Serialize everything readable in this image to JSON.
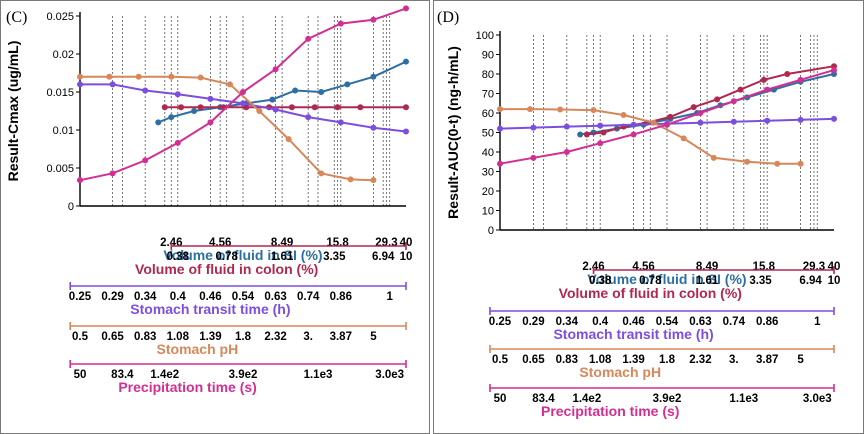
{
  "colors": {
    "si": "#2e6fa3",
    "colon": "#b0284f",
    "transit": "#7c4ee0",
    "ph": "#d8875a",
    "precip": "#d12f93"
  },
  "chart_data": [
    {
      "type": "line",
      "panel_label": "(C)",
      "ylabel": "Result-Cmax (ug/mL)",
      "ylim": [
        0,
        0.025
      ],
      "y_ticks": [
        "0",
        "0.005",
        "0.01",
        "0.015",
        "0.02",
        "0.025"
      ],
      "grid": "dashed vertical lines at x ticks",
      "series": [
        {
          "name": "Volume of fluid in SI (%)",
          "color_key": "si",
          "x": [
            0.24,
            0.28,
            0.35,
            0.43,
            0.51,
            0.59,
            0.66,
            0.74,
            0.82,
            0.9,
            1.0
          ],
          "values": [
            0.011,
            0.0117,
            0.0125,
            0.013,
            0.0135,
            0.014,
            0.0152,
            0.015,
            0.016,
            0.017,
            0.019
          ]
        },
        {
          "name": "Volume of fluid in colon (%)",
          "color_key": "colon",
          "x": [
            0.26,
            0.31,
            0.37,
            0.44,
            0.51,
            0.58,
            0.65,
            0.72,
            0.79,
            0.86,
            1.0
          ],
          "values": [
            0.013,
            0.013,
            0.013,
            0.013,
            0.013,
            0.013,
            0.013,
            0.013,
            0.013,
            0.013,
            0.013
          ]
        },
        {
          "name": "Stomach transit time (h)",
          "color_key": "transit",
          "x": [
            0.0,
            0.1,
            0.2,
            0.3,
            0.4,
            0.5,
            0.6,
            0.7,
            0.8,
            0.9,
            1.0
          ],
          "values": [
            0.016,
            0.016,
            0.0152,
            0.0147,
            0.0141,
            0.0135,
            0.0127,
            0.0117,
            0.011,
            0.0103,
            0.0098
          ]
        },
        {
          "name": "Stomach pH",
          "color_key": "ph",
          "x": [
            0.0,
            0.09,
            0.18,
            0.28,
            0.37,
            0.46,
            0.55,
            0.64,
            0.74,
            0.83,
            0.9
          ],
          "values": [
            0.017,
            0.017,
            0.017,
            0.017,
            0.0169,
            0.016,
            0.0125,
            0.0088,
            0.0043,
            0.0035,
            0.0034
          ]
        },
        {
          "name": "Precipitation time (s)",
          "color_key": "precip",
          "x": [
            0.0,
            0.1,
            0.2,
            0.3,
            0.4,
            0.5,
            0.6,
            0.7,
            0.8,
            0.9,
            1.0
          ],
          "values": [
            0.0034,
            0.0043,
            0.006,
            0.0083,
            0.011,
            0.015,
            0.018,
            0.022,
            0.024,
            0.0245,
            0.026
          ]
        }
      ]
    },
    {
      "type": "line",
      "panel_label": "(D)",
      "ylabel": "Result-AUC(0-t) (ng-h/mL)",
      "ylim": [
        0,
        100
      ],
      "y_ticks": [
        "0",
        "10",
        "20",
        "30",
        "40",
        "50",
        "60",
        "70",
        "80",
        "90",
        "100"
      ],
      "grid": "dashed vertical lines at x ticks",
      "series": [
        {
          "name": "Volume of fluid in SI (%)",
          "color_key": "si",
          "x": [
            0.24,
            0.28,
            0.35,
            0.43,
            0.51,
            0.59,
            0.66,
            0.74,
            0.82,
            0.9,
            1.0
          ],
          "values": [
            49,
            50,
            52,
            54,
            57,
            60,
            64,
            68,
            72,
            76,
            80
          ]
        },
        {
          "name": "Volume of fluid in colon (%)",
          "color_key": "colon",
          "x": [
            0.26,
            0.31,
            0.37,
            0.44,
            0.51,
            0.58,
            0.65,
            0.72,
            0.79,
            0.86,
            1.0
          ],
          "values": [
            49,
            50,
            53,
            55,
            58,
            63,
            67,
            72,
            77,
            80,
            84
          ]
        },
        {
          "name": "Stomach transit time (h)",
          "color_key": "transit",
          "x": [
            0.0,
            0.1,
            0.2,
            0.3,
            0.4,
            0.5,
            0.6,
            0.7,
            0.8,
            0.9,
            1.0
          ],
          "values": [
            52,
            52.5,
            53,
            53.5,
            54,
            54.5,
            55,
            55.5,
            56,
            56.5,
            57
          ]
        },
        {
          "name": "Stomach pH",
          "color_key": "ph",
          "x": [
            0.0,
            0.09,
            0.18,
            0.28,
            0.37,
            0.46,
            0.55,
            0.64,
            0.74,
            0.83,
            0.9
          ],
          "values": [
            62,
            62,
            61.8,
            61.5,
            59,
            55,
            47,
            37,
            35,
            34,
            34
          ]
        },
        {
          "name": "Precipitation time (s)",
          "color_key": "precip",
          "x": [
            0.0,
            0.1,
            0.2,
            0.3,
            0.4,
            0.5,
            0.6,
            0.7,
            0.8,
            0.9,
            1.0
          ],
          "values": [
            34,
            37,
            40,
            44.5,
            49,
            54,
            60,
            66,
            72,
            77,
            82
          ]
        }
      ]
    }
  ],
  "x_axes": [
    {
      "key": "si",
      "title": "Volume of fluid in SI (%)",
      "ticks": [
        {
          "label": "2.46",
          "x": 0.28
        },
        {
          "label": "4.56",
          "x": 0.43
        },
        {
          "label": "8.49",
          "x": 0.62
        },
        {
          "label": "15.8",
          "x": 0.79
        },
        {
          "label": "29.3",
          "x": 0.94
        },
        {
          "label": "40",
          "x": 1.0
        }
      ]
    },
    {
      "key": "colon",
      "title": "Volume of fluid in colon (%)",
      "ticks": [
        {
          "label": "0.38",
          "x": 0.3
        },
        {
          "label": "0.78",
          "x": 0.45
        },
        {
          "label": "1.61",
          "x": 0.62
        },
        {
          "label": "3.35",
          "x": 0.78
        },
        {
          "label": "6.94",
          "x": 0.93
        },
        {
          "label": "10",
          "x": 1.0
        }
      ]
    },
    {
      "key": "transit",
      "title": "Stomach transit time (h)",
      "ticks": [
        {
          "label": "0.25",
          "x": 0.0
        },
        {
          "label": "0.29",
          "x": 0.1
        },
        {
          "label": "0.34",
          "x": 0.2
        },
        {
          "label": "0.4",
          "x": 0.3
        },
        {
          "label": "0.46",
          "x": 0.4
        },
        {
          "label": "0.54",
          "x": 0.5
        },
        {
          "label": "0.63",
          "x": 0.6
        },
        {
          "label": "0.74",
          "x": 0.7
        },
        {
          "label": "0.86",
          "x": 0.8
        },
        {
          "label": "1",
          "x": 0.95
        }
      ]
    },
    {
      "key": "ph",
      "title": "Stomach pH",
      "ticks": [
        {
          "label": "0.5",
          "x": 0.0
        },
        {
          "label": "0.65",
          "x": 0.1
        },
        {
          "label": "0.83",
          "x": 0.2
        },
        {
          "label": "1.08",
          "x": 0.3
        },
        {
          "label": "1.39",
          "x": 0.4
        },
        {
          "label": "1.8",
          "x": 0.5
        },
        {
          "label": "2.32",
          "x": 0.6
        },
        {
          "label": "3.",
          "x": 0.7
        },
        {
          "label": "3.87",
          "x": 0.8
        },
        {
          "label": "5",
          "x": 0.9
        }
      ]
    },
    {
      "key": "precip",
      "title": "Precipitation time (s)",
      "ticks": [
        {
          "label": "50",
          "x": 0.0
        },
        {
          "label": "83.4",
          "x": 0.13
        },
        {
          "label": "1.4e2",
          "x": 0.26
        },
        {
          "label": "3.9e2",
          "x": 0.5
        },
        {
          "label": "1.1e3",
          "x": 0.73
        },
        {
          "label": "3.0e3",
          "x": 0.95
        }
      ]
    }
  ]
}
